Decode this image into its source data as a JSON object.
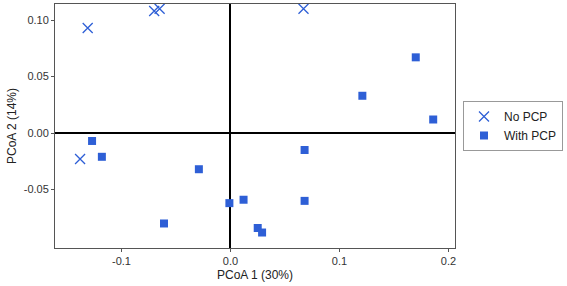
{
  "chart_data": {
    "type": "scatter",
    "x_label": "PCoA 1 (30%)",
    "y_label": "PCoA 2 (14%)",
    "xlim": [
      -0.161,
      0.206
    ],
    "ylim": [
      -0.1017,
      0.1142
    ],
    "xticks": [
      {
        "value": -0.1,
        "label": "-0.1"
      },
      {
        "value": 0,
        "label": "0.0"
      },
      {
        "value": 0.1,
        "label": "0.1"
      },
      {
        "value": 0.2,
        "label": "0.2"
      }
    ],
    "yticks": [
      {
        "value": -0.05,
        "label": "-0.05"
      },
      {
        "value": 0,
        "label": "0.00"
      },
      {
        "value": 0.05,
        "label": "0.05"
      },
      {
        "value": 0.1,
        "label": "0.10"
      }
    ],
    "grid": false,
    "legend": "right",
    "series": [
      {
        "name": "No PCP",
        "color": "#2e5fd6",
        "marker": "x",
        "x": [
          -0.131,
          -0.07,
          -0.065,
          0.067,
          -0.138
        ],
        "values": [
          0.093,
          0.108,
          0.11,
          0.11,
          -0.023
        ]
      },
      {
        "name": "With PCP",
        "color": "#2e5fd6",
        "marker": "square",
        "x": [
          -0.127,
          -0.118,
          -0.029,
          -0.061,
          -0.001,
          0.012,
          0.025,
          0.029,
          0.068,
          0.068,
          0.121,
          0.17,
          0.186
        ],
        "values": [
          -0.007,
          -0.021,
          -0.032,
          -0.08,
          -0.062,
          -0.059,
          -0.084,
          -0.088,
          -0.015,
          -0.06,
          0.033,
          0.067,
          0.012
        ]
      }
    ]
  }
}
